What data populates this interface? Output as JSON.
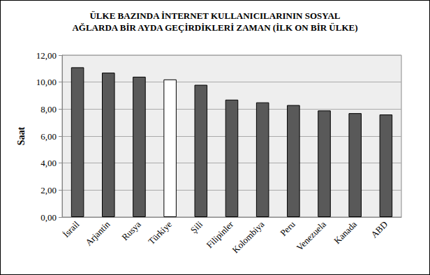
{
  "chart_data": {
    "type": "bar",
    "title": "ÜLKE BAZINDA İNTERNET KULLANICILARININ SOSYAL\nAĞLARDA BİR AYDA GEÇİRDİKLERİ ZAMAN (İLK ON BİR ÜLKE)",
    "y_label": "Saat",
    "categories": [
      "İsrail",
      "Arjantin",
      "Rusya",
      "Türkiye",
      "Şili",
      "Filipinler",
      "Kolombiya",
      "Peru",
      "Venezuela",
      "Kanada",
      "ABD"
    ],
    "values": [
      11.1,
      10.7,
      10.4,
      10.2,
      9.8,
      8.7,
      8.5,
      8.3,
      7.9,
      7.7,
      7.6
    ],
    "colors": [
      "#595959",
      "#595959",
      "#595959",
      "#ffffff",
      "#595959",
      "#595959",
      "#595959",
      "#595959",
      "#595959",
      "#595959",
      "#595959"
    ],
    "ylim": [
      0,
      12
    ],
    "yticks": [
      {
        "value": 0,
        "label": "0,00"
      },
      {
        "value": 2,
        "label": "2,00"
      },
      {
        "value": 4,
        "label": "4,00"
      },
      {
        "value": 6,
        "label": "6,00"
      },
      {
        "value": 8,
        "label": "8,00"
      },
      {
        "value": 10,
        "label": "10,00"
      },
      {
        "value": 12,
        "label": "12,00"
      }
    ],
    "grid": true
  }
}
